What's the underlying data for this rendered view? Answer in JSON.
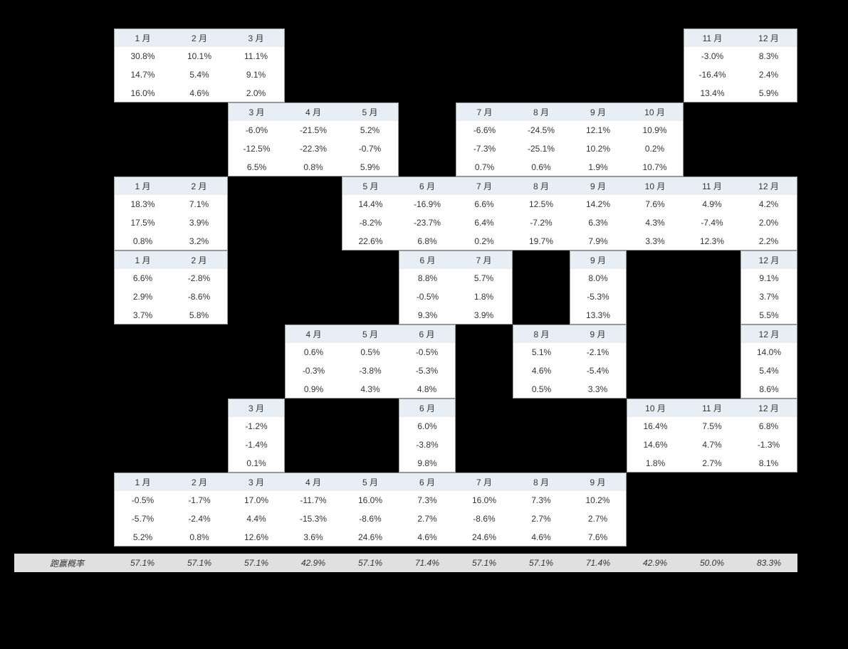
{
  "months": [
    "1 月",
    "2 月",
    "3 月",
    "4 月",
    "5 月",
    "6 月",
    "7 月",
    "8 月",
    "9 月",
    "10 月",
    "11 月",
    "12 月"
  ],
  "summaryLabel": "跑赢概率",
  "summaryValues": [
    "57.1%",
    "57.1%",
    "57.1%",
    "42.9%",
    "57.1%",
    "71.4%",
    "57.1%",
    "57.1%",
    "71.4%",
    "42.9%",
    "50.0%",
    "83.3%"
  ],
  "colors": {
    "background": "#000000",
    "cellWhite": "#ffffff",
    "headerBg": "#e8eef5",
    "summaryBg": "#e0e0e0",
    "text": "#333333",
    "border": "#999999"
  },
  "fontSize": 12,
  "blocks": [
    {
      "headerCols": [
        0,
        1,
        2,
        10,
        11
      ],
      "dataRows": [
        [
          "30.8%",
          "10.1%",
          "11.1%",
          "",
          "",
          "",
          "",
          "",
          "",
          "",
          "-3.0%",
          "8.3%"
        ],
        [
          "14.7%",
          "5.4%",
          "9.1%",
          "",
          "",
          "",
          "",
          "",
          "",
          "",
          "-16.4%",
          "2.4%"
        ],
        [
          "16.0%",
          "4.6%",
          "2.0%",
          "",
          "",
          "",
          "",
          "",
          "",
          "",
          "13.4%",
          "5.9%"
        ]
      ],
      "activeCols": [
        0,
        1,
        2,
        10,
        11
      ],
      "groups": [
        [
          0,
          2
        ],
        [
          10,
          11
        ]
      ]
    },
    {
      "headerCols": [
        2,
        3,
        4,
        6,
        7,
        8,
        9
      ],
      "dataRows": [
        [
          "",
          "",
          "-6.0%",
          "-21.5%",
          "5.2%",
          "",
          "-6.6%",
          "-24.5%",
          "12.1%",
          "10.9%",
          "",
          ""
        ],
        [
          "",
          "",
          "-12.5%",
          "-22.3%",
          "-0.7%",
          "",
          "-7.3%",
          "-25.1%",
          "10.2%",
          "0.2%",
          "",
          ""
        ],
        [
          "",
          "",
          "6.5%",
          "0.8%",
          "5.9%",
          "",
          "0.7%",
          "0.6%",
          "1.9%",
          "10.7%",
          "",
          ""
        ]
      ],
      "activeCols": [
        2,
        3,
        4,
        6,
        7,
        8,
        9
      ],
      "groups": [
        [
          2,
          4
        ],
        [
          6,
          9
        ]
      ]
    },
    {
      "headerCols": [
        0,
        1,
        4,
        5,
        6,
        7,
        8,
        9,
        10,
        11
      ],
      "dataRows": [
        [
          "18.3%",
          "7.1%",
          "",
          "",
          "14.4%",
          "-16.9%",
          "6.6%",
          "12.5%",
          "14.2%",
          "7.6%",
          "4.9%",
          "4.2%"
        ],
        [
          "17.5%",
          "3.9%",
          "",
          "",
          "-8.2%",
          "-23.7%",
          "6.4%",
          "-7.2%",
          "6.3%",
          "4.3%",
          "-7.4%",
          "2.0%"
        ],
        [
          "0.8%",
          "3.2%",
          "",
          "",
          "22.6%",
          "6.8%",
          "0.2%",
          "19.7%",
          "7.9%",
          "3.3%",
          "12.3%",
          "2.2%"
        ]
      ],
      "activeCols": [
        0,
        1,
        4,
        5,
        6,
        7,
        8,
        9,
        10,
        11
      ],
      "groups": [
        [
          0,
          1
        ],
        [
          4,
          11
        ]
      ]
    },
    {
      "headerCols": [
        0,
        1,
        5,
        6,
        8,
        11
      ],
      "dataRows": [
        [
          "6.6%",
          "-2.8%",
          "",
          "",
          "",
          "8.8%",
          "5.7%",
          "",
          "8.0%",
          "",
          "",
          "9.1%"
        ],
        [
          "2.9%",
          "-8.6%",
          "",
          "",
          "",
          "-0.5%",
          "1.8%",
          "",
          "-5.3%",
          "",
          "",
          "3.7%"
        ],
        [
          "3.7%",
          "5.8%",
          "",
          "",
          "",
          "9.3%",
          "3.9%",
          "",
          "13.3%",
          "",
          "",
          "5.5%"
        ]
      ],
      "activeCols": [
        0,
        1,
        5,
        6,
        8,
        11
      ],
      "groups": [
        [
          0,
          1
        ],
        [
          5,
          6
        ],
        [
          8,
          8
        ],
        [
          11,
          11
        ]
      ]
    },
    {
      "headerCols": [
        3,
        4,
        5,
        7,
        8,
        11
      ],
      "dataRows": [
        [
          "",
          "",
          "",
          "0.6%",
          "0.5%",
          "-0.5%",
          "",
          "5.1%",
          "-2.1%",
          "",
          "",
          "14.0%"
        ],
        [
          "",
          "",
          "",
          "-0.3%",
          "-3.8%",
          "-5.3%",
          "",
          "4.6%",
          "-5.4%",
          "",
          "",
          "5.4%"
        ],
        [
          "",
          "",
          "",
          "0.9%",
          "4.3%",
          "4.8%",
          "",
          "0.5%",
          "3.3%",
          "",
          "",
          "8.6%"
        ]
      ],
      "activeCols": [
        3,
        4,
        5,
        7,
        8,
        11
      ],
      "groups": [
        [
          3,
          5
        ],
        [
          7,
          8
        ],
        [
          11,
          11
        ]
      ]
    },
    {
      "headerCols": [
        2,
        5,
        9,
        10,
        11
      ],
      "dataRows": [
        [
          "",
          "",
          "-1.2%",
          "",
          "",
          "6.0%",
          "",
          "",
          "",
          "16.4%",
          "7.5%",
          "6.8%"
        ],
        [
          "",
          "",
          "-1.4%",
          "",
          "",
          "-3.8%",
          "",
          "",
          "",
          "14.6%",
          "4.7%",
          "-1.3%"
        ],
        [
          "",
          "",
          "0.1%",
          "",
          "",
          "9.8%",
          "",
          "",
          "",
          "1.8%",
          "2.7%",
          "8.1%"
        ]
      ],
      "activeCols": [
        2,
        5,
        9,
        10,
        11
      ],
      "groups": [
        [
          2,
          2
        ],
        [
          5,
          5
        ],
        [
          9,
          11
        ]
      ]
    },
    {
      "headerCols": [
        0,
        1,
        2,
        3,
        4,
        5,
        6,
        7,
        8
      ],
      "dataRows": [
        [
          "-0.5%",
          "-1.7%",
          "17.0%",
          "-11.7%",
          "16.0%",
          "7.3%",
          "16.0%",
          "7.3%",
          "10.2%",
          "",
          "",
          ""
        ],
        [
          "-5.7%",
          "-2.4%",
          "4.4%",
          "-15.3%",
          "-8.6%",
          "2.7%",
          "-8.6%",
          "2.7%",
          "2.7%",
          "",
          "",
          ""
        ],
        [
          "5.2%",
          "0.8%",
          "12.6%",
          "3.6%",
          "24.6%",
          "4.6%",
          "24.6%",
          "4.6%",
          "7.6%",
          "",
          "",
          ""
        ]
      ],
      "activeCols": [
        0,
        1,
        2,
        3,
        4,
        5,
        6,
        7,
        8
      ],
      "groups": [
        [
          0,
          8
        ]
      ]
    }
  ]
}
